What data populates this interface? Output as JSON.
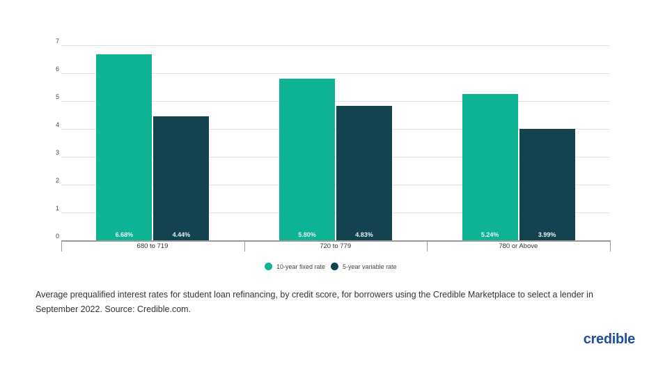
{
  "chart_data": {
    "type": "bar",
    "title": "",
    "xlabel": "",
    "ylabel": "",
    "categories": [
      "680 to 719",
      "720 to 779",
      "780 or Above"
    ],
    "series": [
      {
        "name": "10-year fixed rate",
        "color": "#0db392",
        "values": [
          6.68,
          5.8,
          5.24
        ],
        "labels": [
          "6.68%",
          "5.80%",
          "5.24%"
        ]
      },
      {
        "name": "5-year variable rate",
        "color": "#12434f",
        "values": [
          4.44,
          4.83,
          3.99
        ],
        "labels": [
          "4.44%",
          "4.83%",
          "3.99%"
        ]
      }
    ],
    "ylim": [
      0,
      7
    ],
    "yticks": [
      "0",
      "1",
      "2",
      "3",
      "4",
      "5",
      "6",
      "7"
    ],
    "grid": true,
    "legend_position": "bottom"
  },
  "legend": [
    {
      "label": "10-year fixed rate",
      "color": "#0db392"
    },
    {
      "label": "5-year variable rate",
      "color": "#12434f"
    }
  ],
  "caption": "Average prequalified interest rates for student loan refinancing, by credit score, for borrowers using the Credible Marketplace to select a lender in September 2022. Source: Credible.com.",
  "logo": "credible"
}
